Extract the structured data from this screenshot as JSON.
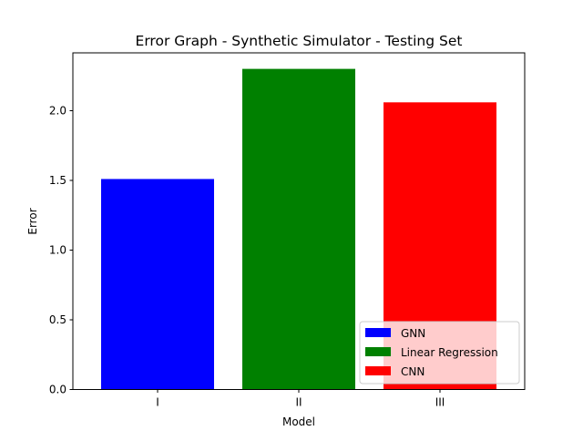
{
  "chart_data": {
    "type": "bar",
    "title": "Error Graph - Synthetic Simulator - Testing Set",
    "xlabel": "Model",
    "ylabel": "Error",
    "categories": [
      "I",
      "II",
      "III"
    ],
    "series": [
      {
        "name": "GNN",
        "category": "I",
        "value": 1.51,
        "color": "#0000ff"
      },
      {
        "name": "Linear Regression",
        "category": "II",
        "value": 2.3,
        "color": "#008000"
      },
      {
        "name": "CNN",
        "category": "III",
        "value": 2.06,
        "color": "#ff0000"
      }
    ],
    "ylim": [
      0,
      2.415
    ],
    "yticks": [
      0.0,
      0.5,
      1.0,
      1.5,
      2.0
    ],
    "ytick_labels": [
      "0.0",
      "0.5",
      "1.0",
      "1.5",
      "2.0"
    ],
    "grid": false,
    "legend_position": "lower-right"
  }
}
